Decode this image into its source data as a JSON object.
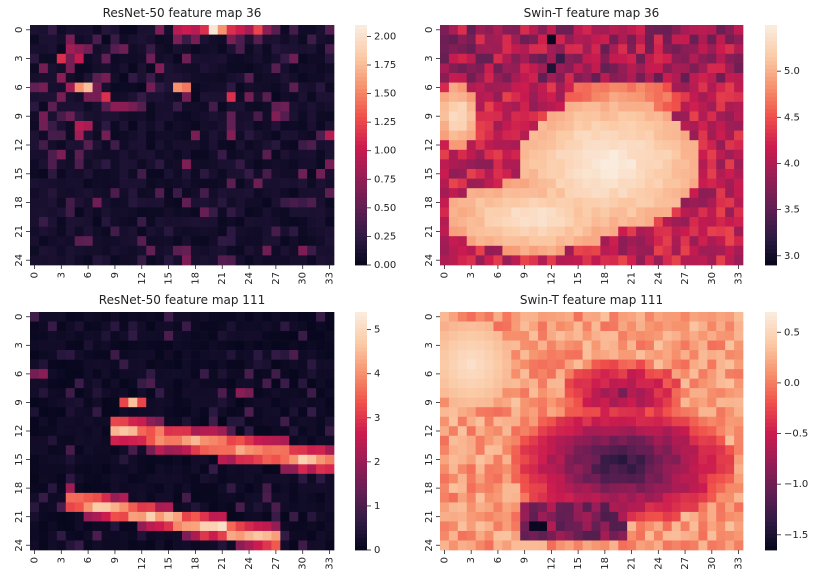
{
  "colormap": [
    "#03051a",
    "#2e1a43",
    "#611f53",
    "#961d56",
    "#cb1b4f",
    "#f0504a",
    "#f6926d",
    "#fbcaa6",
    "#faebdd"
  ],
  "chart_data": [
    {
      "type": "heatmap",
      "title": "ResNet-50 feature map 36",
      "rows": 25,
      "cols": 34,
      "x_ticks": [
        "0",
        "3",
        "6",
        "9",
        "12",
        "15",
        "18",
        "21",
        "24",
        "27",
        "30",
        "33"
      ],
      "y_ticks": [
        "0",
        "3",
        "6",
        "9",
        "12",
        "15",
        "18",
        "21",
        "24"
      ],
      "vmin": 0.0,
      "vmax": 2.1,
      "colorbar_ticks": [
        "0.00",
        "0.25",
        "0.50",
        "0.75",
        "1.00",
        "1.25",
        "1.50",
        "1.75",
        "2.00"
      ],
      "colorbar_values": [
        0,
        0.25,
        0.5,
        0.75,
        1.0,
        1.25,
        1.5,
        1.75,
        2.0
      ],
      "pattern": "resnet36"
    },
    {
      "type": "heatmap",
      "title": "Swin-T feature map 36",
      "rows": 25,
      "cols": 34,
      "x_ticks": [
        "0",
        "3",
        "6",
        "9",
        "12",
        "15",
        "18",
        "21",
        "24",
        "27",
        "30",
        "33"
      ],
      "y_ticks": [
        "0",
        "3",
        "6",
        "9",
        "12",
        "15",
        "18",
        "21",
        "24"
      ],
      "vmin": 2.9,
      "vmax": 5.5,
      "colorbar_ticks": [
        "3.0",
        "3.5",
        "4.0",
        "4.5",
        "5.0"
      ],
      "colorbar_values": [
        3.0,
        3.5,
        4.0,
        4.5,
        5.0
      ],
      "pattern": "swin36"
    },
    {
      "type": "heatmap",
      "title": "ResNet-50 feature map 111",
      "rows": 25,
      "cols": 34,
      "x_ticks": [
        "0",
        "3",
        "6",
        "9",
        "12",
        "15",
        "18",
        "21",
        "24",
        "27",
        "30",
        "33"
      ],
      "y_ticks": [
        "0",
        "3",
        "6",
        "9",
        "12",
        "15",
        "18",
        "21",
        "24"
      ],
      "vmin": 0.0,
      "vmax": 5.4,
      "colorbar_ticks": [
        "0",
        "1",
        "2",
        "3",
        "4",
        "5"
      ],
      "colorbar_values": [
        0,
        1,
        2,
        3,
        4,
        5
      ],
      "pattern": "resnet111"
    },
    {
      "type": "heatmap",
      "title": "Swin-T feature map 111",
      "rows": 25,
      "cols": 34,
      "x_ticks": [
        "0",
        "3",
        "6",
        "9",
        "12",
        "15",
        "18",
        "21",
        "24",
        "27",
        "30",
        "33"
      ],
      "y_ticks": [
        "0",
        "3",
        "6",
        "9",
        "12",
        "15",
        "18",
        "21",
        "24"
      ],
      "vmin": -1.65,
      "vmax": 0.7,
      "colorbar_ticks": [
        "0.5",
        "0.0",
        "−0.5",
        "−1.0",
        "−1.5"
      ],
      "colorbar_values": [
        0.5,
        0.0,
        -0.5,
        -1.0,
        -1.5
      ],
      "pattern": "swin111"
    }
  ]
}
